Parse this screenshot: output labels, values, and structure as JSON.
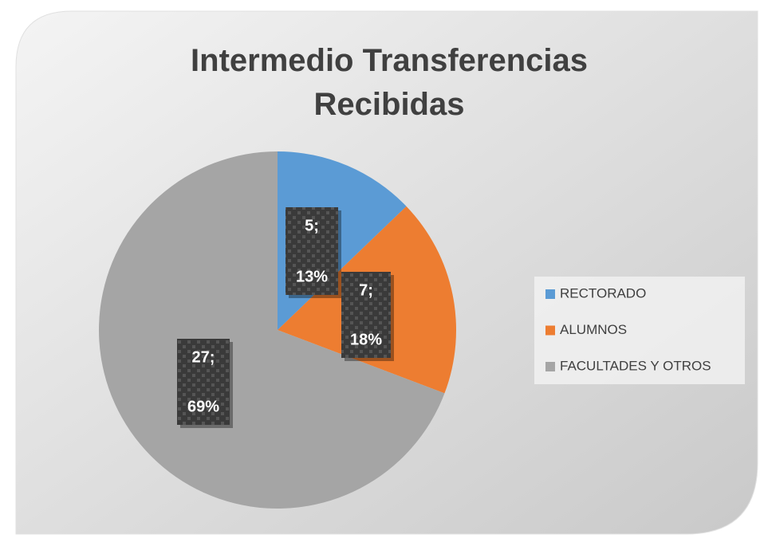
{
  "chart_data": {
    "type": "pie",
    "title": "Intermedio  Transferencias Recibidas",
    "categories": [
      "RECTORADO",
      "ALUMNOS",
      "FACULTADES Y  OTROS"
    ],
    "values": [
      5,
      7,
      27
    ],
    "value_labels": [
      "5;",
      "7;",
      "27;"
    ],
    "percent_labels": [
      "13%",
      "18%",
      "69%"
    ],
    "colors": [
      "#5b9bd5",
      "#ed7d31",
      "#a5a5a5"
    ],
    "legend": "right"
  }
}
